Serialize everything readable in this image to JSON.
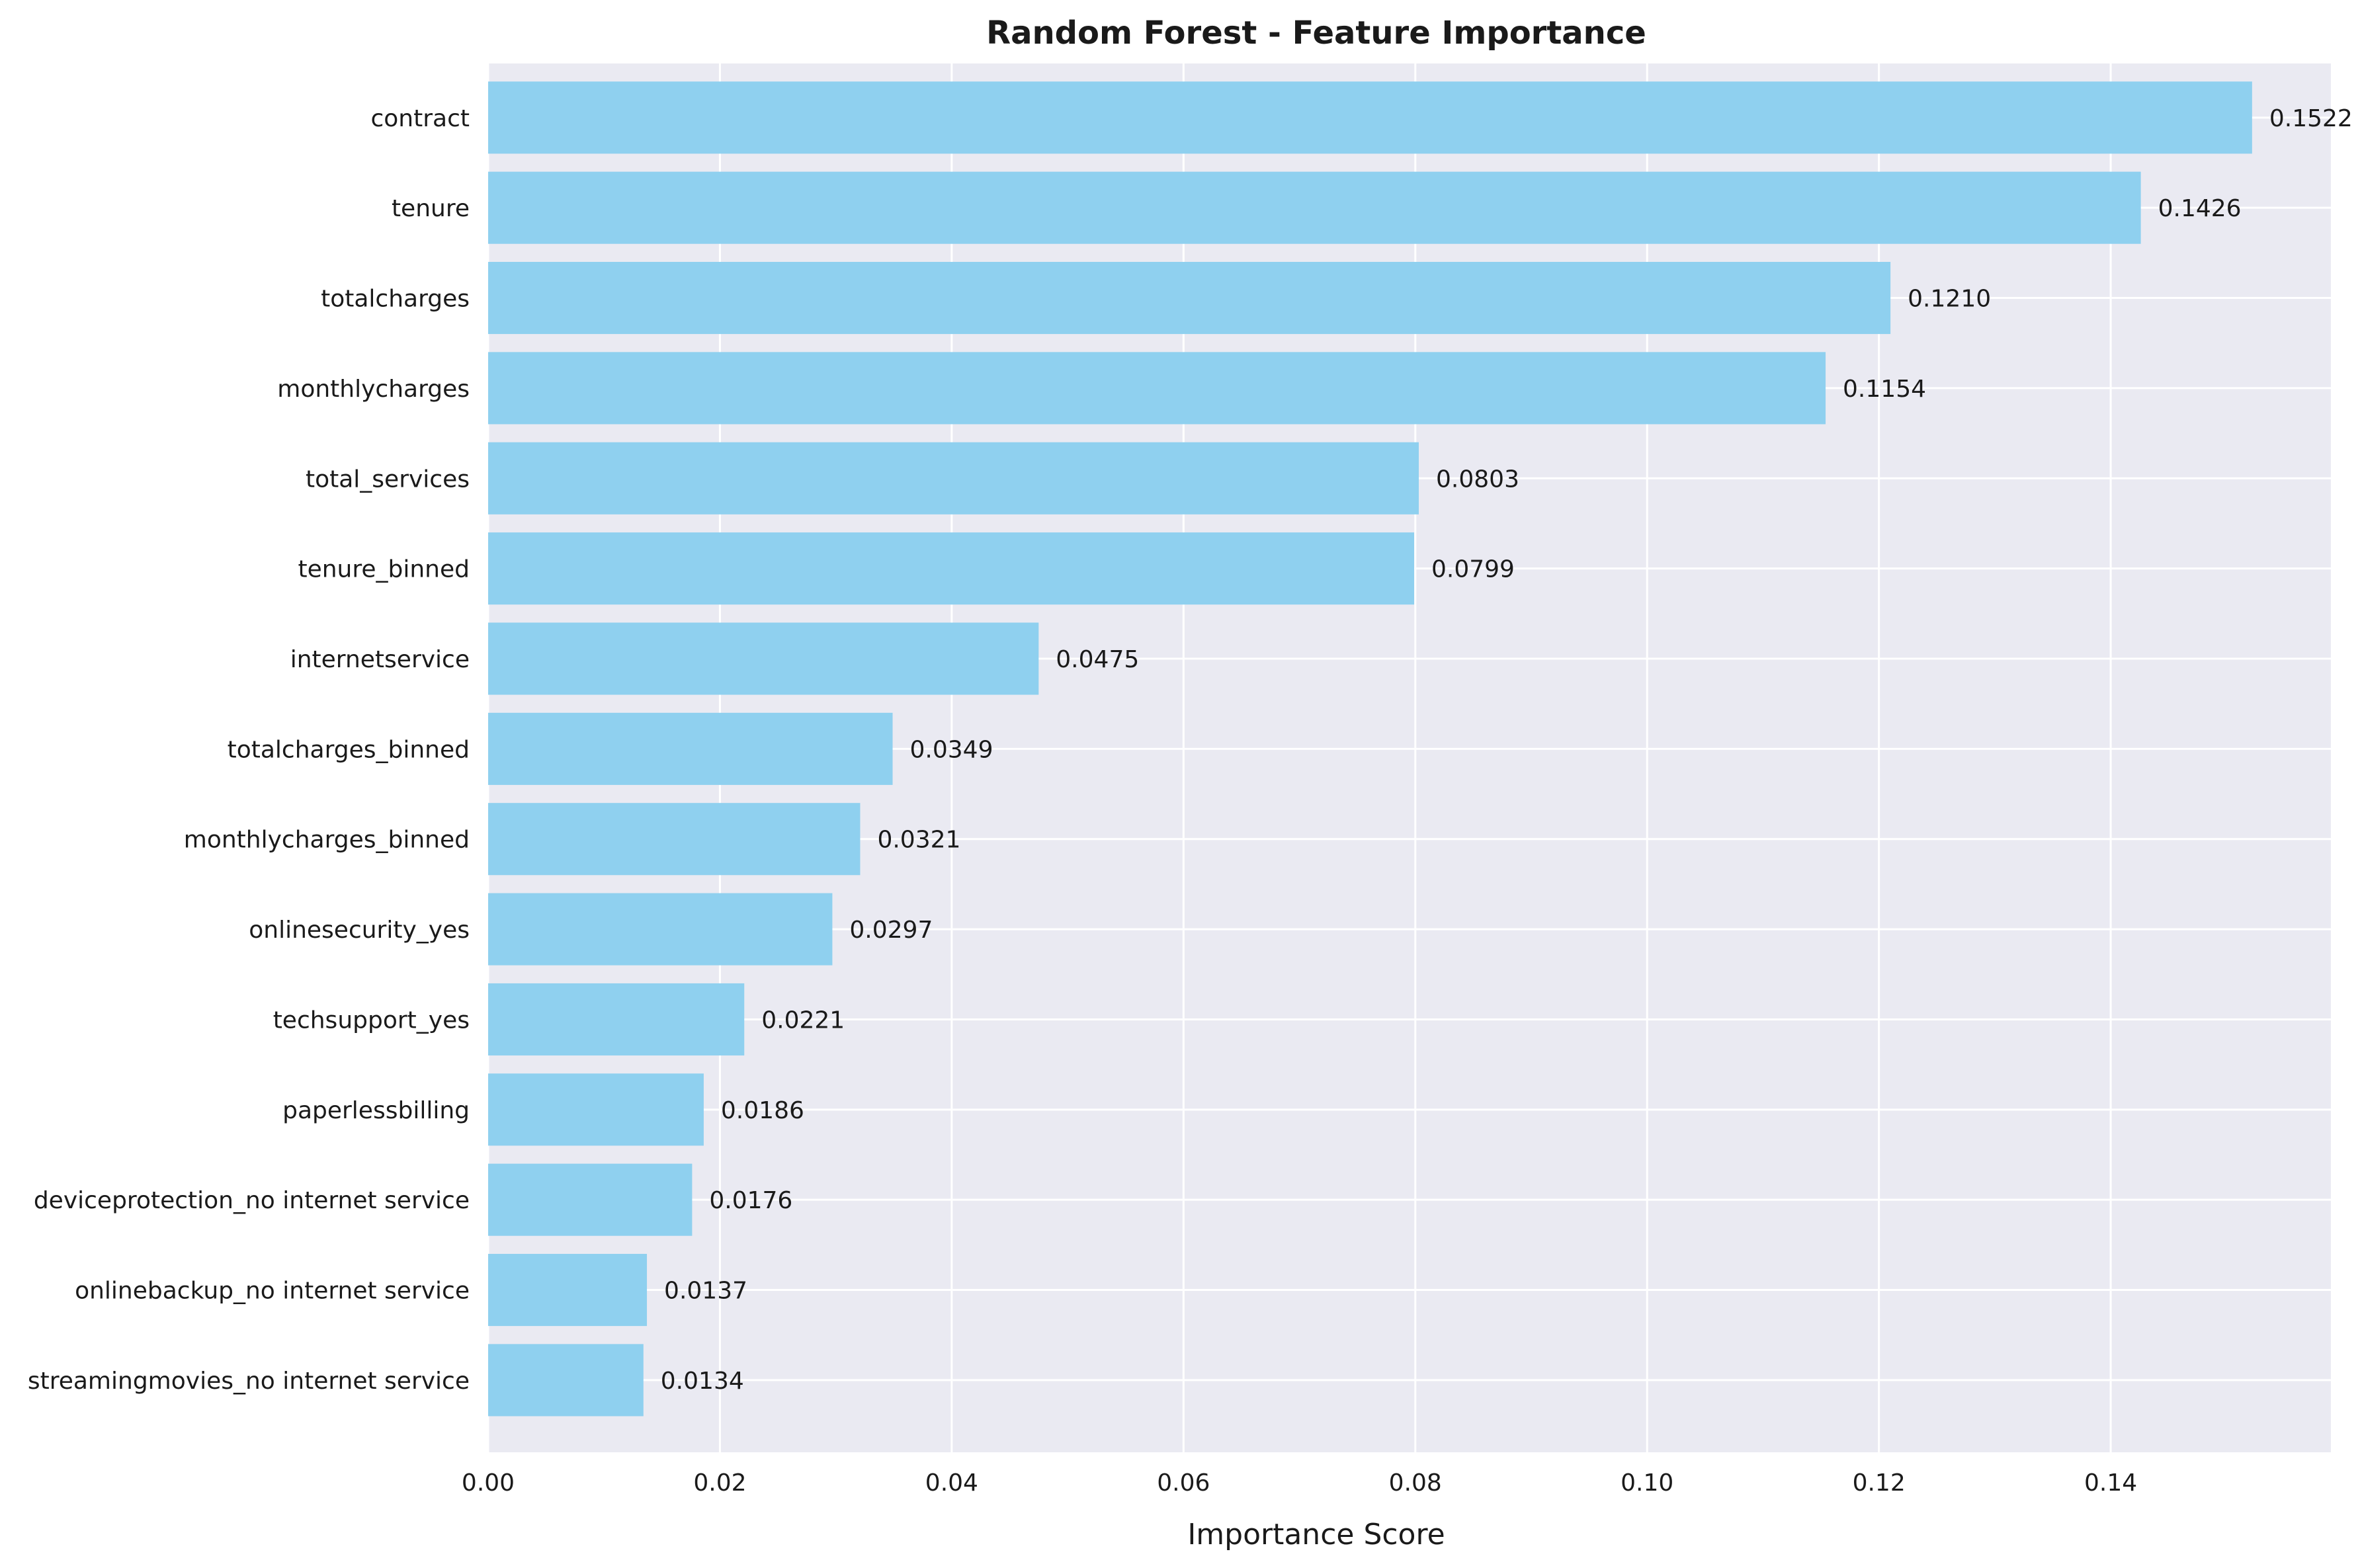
{
  "chart_data": {
    "type": "bar",
    "orientation": "horizontal",
    "title": "Random Forest - Feature Importance",
    "xlabel": "Importance Score",
    "ylabel": "",
    "xlim": [
      0,
      0.159
    ],
    "xticks": [
      "0.00",
      "0.02",
      "0.04",
      "0.06",
      "0.08",
      "0.10",
      "0.12",
      "0.14"
    ],
    "grid": true,
    "legend": "none",
    "categories": [
      "contract",
      "tenure",
      "totalcharges",
      "monthlycharges",
      "total_services",
      "tenure_binned",
      "internetservice",
      "totalcharges_binned",
      "monthlycharges_binned",
      "onlinesecurity_yes",
      "techsupport_yes",
      "paperlessbilling",
      "deviceprotection_no internet service",
      "onlinebackup_no internet service",
      "streamingmovies_no internet service"
    ],
    "values": [
      0.1522,
      0.1426,
      0.121,
      0.1154,
      0.0803,
      0.0799,
      0.0475,
      0.0349,
      0.0321,
      0.0297,
      0.0221,
      0.0186,
      0.0176,
      0.0137,
      0.0134
    ],
    "data_labels": [
      "0.1522",
      "0.1426",
      "0.1210",
      "0.1154",
      "0.0803",
      "0.0799",
      "0.0475",
      "0.0349",
      "0.0321",
      "0.0297",
      "0.0221",
      "0.0186",
      "0.0176",
      "0.0137",
      "0.0134"
    ],
    "colors": {
      "bar": "#8fd0ef",
      "plot_background": "#eaeaf2",
      "grid": "#ffffff",
      "text": "#1a1a1a"
    }
  }
}
